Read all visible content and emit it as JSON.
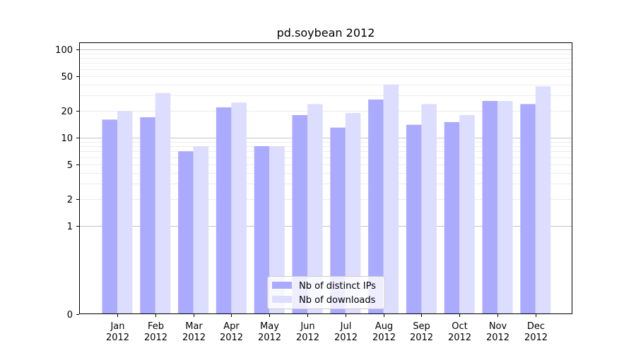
{
  "chart_data": {
    "type": "bar",
    "title": "pd.soybean 2012",
    "xlabel": "",
    "ylabel": "",
    "yscale": "symlog",
    "ylim": [
      0,
      120
    ],
    "yticks": [
      0,
      1,
      2,
      5,
      10,
      20,
      50,
      100
    ],
    "grid": "major gridlines on log ticks",
    "legend_position": "bottom-center",
    "categories": [
      [
        "Jan",
        "2012"
      ],
      [
        "Feb",
        "2012"
      ],
      [
        "Mar",
        "2012"
      ],
      [
        "Apr",
        "2012"
      ],
      [
        "May",
        "2012"
      ],
      [
        "Jun",
        "2012"
      ],
      [
        "Jul",
        "2012"
      ],
      [
        "Aug",
        "2012"
      ],
      [
        "Sep",
        "2012"
      ],
      [
        "Oct",
        "2012"
      ],
      [
        "Nov",
        "2012"
      ],
      [
        "Dec",
        "2012"
      ]
    ],
    "series": [
      {
        "name": "Nb of distinct IPs",
        "color": "#aaaaff",
        "values": [
          16,
          17,
          7,
          22,
          8,
          18,
          13,
          27,
          14,
          15,
          26,
          24
        ]
      },
      {
        "name": "Nb of downloads",
        "color": "#ddddff",
        "values": [
          20,
          32,
          8,
          25,
          8,
          24,
          19,
          40,
          24,
          18,
          26,
          38
        ]
      }
    ]
  }
}
